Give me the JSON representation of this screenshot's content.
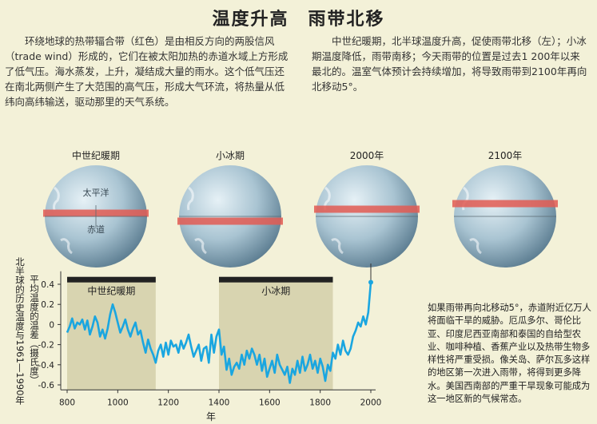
{
  "title": "温度升高　雨带北移",
  "intro_left": "环绕地球的热带辐合带（红色）是由相反方向的两股信风（trade wind）形成的，它们在被太阳加热的赤道水域上方形成了低气压。海水蒸发，上升，凝结成大量的雨水。这个低气压还在南北两侧产生了大范围的高气压，形成大气环流，将热量从低纬向高纬输送，驱动那里的天气系统。",
  "intro_right": "中世纪暖期，北半球温度升高，促使雨带北移（左）；小冰期温度降低，雨带南移；今天雨带的位置是过去1 200年以来最北的。温室气体预计会持续增加，将导致雨带到2100年再向北移动5°。",
  "globes": [
    {
      "label": "中世纪暖期",
      "band_offset": -4,
      "ocean_label": "太平洋",
      "equator_label": "赤道"
    },
    {
      "label": "小冰期",
      "band_offset": 6
    },
    {
      "label": "2000年",
      "band_offset": -9
    },
    {
      "label": "2100年",
      "band_offset": -16
    }
  ],
  "side_note": "如果雨带再向北移动5°，赤道附近亿万人将面临干旱的威胁。厄瓜多尔、哥伦比亚、印度尼西亚南部和泰国的自给型农业、咖啡种植、香蕉产业以及热带生物多样性将严重受损。像关岛、萨尔瓦多这样的地区第一次进入雨带，将得到更多降水。美国西南部的严重干旱现象可能成为这一地区新的气候常态。",
  "ylabel_outer": "北半球的历史温度与1961—1990年",
  "ylabel_inner": "平均温度的温差（摄氏度）",
  "colors": {
    "background": "#f3f1d8",
    "line": "#1aa6e0",
    "band": "#d8d4b0",
    "band_bar": "#222222",
    "tropical_band": "#e25a52"
  },
  "chart_data": {
    "type": "line",
    "xlabel": "年",
    "xlim": [
      800,
      2000
    ],
    "ylim": [
      -0.65,
      0.45
    ],
    "xticks": [
      800,
      1000,
      1200,
      1400,
      1600,
      1800,
      2000
    ],
    "yticks": [
      0.4,
      0.2,
      0,
      -0.2,
      -0.4,
      -0.6
    ],
    "periods": [
      {
        "label": "中世纪暖期",
        "start": 800,
        "end": 1150
      },
      {
        "label": "小冰期",
        "start": 1400,
        "end": 1850
      }
    ],
    "x": [
      800,
      810,
      820,
      830,
      840,
      850,
      860,
      870,
      880,
      890,
      900,
      910,
      920,
      930,
      940,
      950,
      960,
      970,
      980,
      990,
      1000,
      1010,
      1020,
      1030,
      1040,
      1050,
      1060,
      1070,
      1080,
      1090,
      1100,
      1110,
      1120,
      1130,
      1140,
      1150,
      1160,
      1170,
      1180,
      1190,
      1200,
      1210,
      1220,
      1230,
      1240,
      1250,
      1260,
      1270,
      1280,
      1290,
      1300,
      1310,
      1320,
      1330,
      1340,
      1350,
      1360,
      1370,
      1380,
      1390,
      1400,
      1410,
      1420,
      1430,
      1440,
      1450,
      1460,
      1470,
      1480,
      1490,
      1500,
      1510,
      1520,
      1530,
      1540,
      1550,
      1560,
      1570,
      1580,
      1590,
      1600,
      1610,
      1620,
      1630,
      1640,
      1650,
      1660,
      1670,
      1680,
      1690,
      1700,
      1710,
      1720,
      1730,
      1740,
      1750,
      1760,
      1770,
      1780,
      1790,
      1800,
      1810,
      1820,
      1830,
      1840,
      1850,
      1860,
      1870,
      1880,
      1890,
      1900,
      1910,
      1920,
      1930,
      1940,
      1950,
      1960,
      1970,
      1980,
      1990,
      2000
    ],
    "y": [
      -0.08,
      -0.02,
      0.06,
      -0.04,
      0.02,
      0.0,
      0.05,
      -0.05,
      0.04,
      -0.1,
      -0.02,
      0.08,
      0.02,
      -0.12,
      -0.05,
      -0.14,
      -0.04,
      0.1,
      0.2,
      0.12,
      0.02,
      -0.08,
      -0.02,
      0.05,
      -0.05,
      -0.12,
      -0.04,
      0.02,
      -0.1,
      -0.06,
      -0.18,
      -0.28,
      -0.15,
      -0.24,
      -0.3,
      -0.38,
      -0.26,
      -0.2,
      -0.32,
      -0.18,
      -0.3,
      -0.16,
      -0.22,
      -0.2,
      -0.28,
      -0.16,
      -0.24,
      -0.18,
      -0.1,
      -0.22,
      -0.32,
      -0.26,
      -0.2,
      -0.36,
      -0.24,
      -0.22,
      -0.38,
      -0.1,
      -0.28,
      -0.12,
      -0.05,
      -0.3,
      -0.22,
      -0.45,
      -0.34,
      -0.5,
      -0.42,
      -0.38,
      -0.44,
      -0.3,
      -0.4,
      -0.26,
      -0.34,
      -0.24,
      -0.3,
      -0.4,
      -0.3,
      -0.46,
      -0.34,
      -0.52,
      -0.44,
      -0.36,
      -0.48,
      -0.3,
      -0.4,
      -0.45,
      -0.5,
      -0.42,
      -0.58,
      -0.44,
      -0.5,
      -0.36,
      -0.48,
      -0.32,
      -0.46,
      -0.4,
      -0.3,
      -0.44,
      -0.36,
      -0.48,
      -0.34,
      -0.42,
      -0.56,
      -0.4,
      -0.46,
      -0.28,
      -0.34,
      -0.2,
      -0.3,
      -0.16,
      -0.26,
      -0.3,
      -0.24,
      -0.12,
      -0.06,
      0.02,
      -0.02,
      0.08,
      0.0,
      0.12,
      0.42
    ]
  }
}
